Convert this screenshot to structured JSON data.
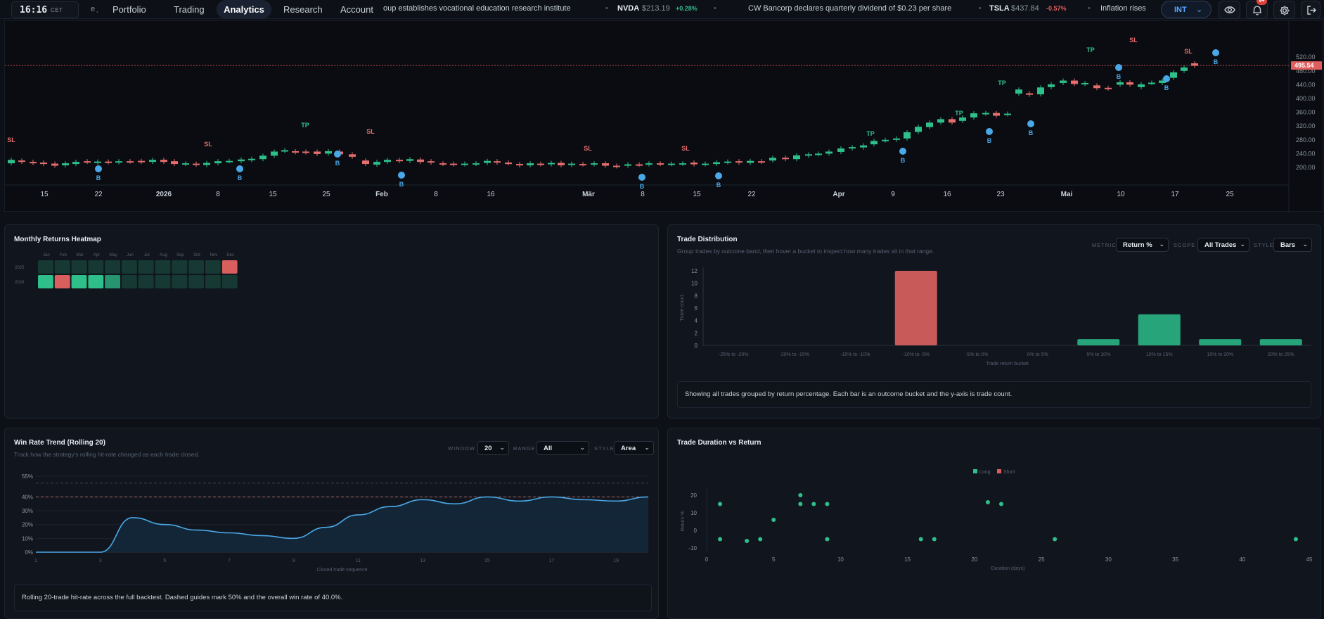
{
  "header": {
    "time": "16:16",
    "timezone": "CET",
    "lang_glyph": "eˏ",
    "nav": [
      {
        "label": "Portfolio",
        "active": false
      },
      {
        "label": "Trading",
        "active": false
      },
      {
        "label": "Analytics",
        "active": true
      },
      {
        "label": "Research",
        "active": false
      },
      {
        "label": "Account",
        "active": false
      }
    ],
    "ticker": {
      "news1": "oup establishes vocational education research institute",
      "sym1": "NVDA",
      "px1": "$213.19",
      "chg1": "+0.28%",
      "news2": "CW Bancorp declares quarterly dividend of $0.23 per share",
      "sym2": "TSLA",
      "px2": "$437.84",
      "chg2": "-0.57%",
      "news3": "Inflation rises"
    },
    "market_button": "INT",
    "notification_count": "9+",
    "icons": [
      "clock-icon",
      "chevron-down-icon",
      "eye-icon",
      "bell-icon",
      "gear-icon",
      "logout-icon"
    ]
  },
  "price_chart": {
    "current_price": "495.54",
    "y_ticks": [
      "520.00",
      "480.00",
      "440.00",
      "400.00",
      "360.00",
      "320.00",
      "280.00",
      "240.00",
      "200.00"
    ],
    "x_ticks": [
      "15",
      "22",
      "2026",
      "8",
      "15",
      "25",
      "Feb",
      "8",
      "16",
      "Mär",
      "8",
      "15",
      "22",
      "Apr",
      "9",
      "16",
      "23",
      "Mai",
      "10",
      "17",
      "25"
    ],
    "markers": {
      "tp": "TP",
      "sl": "SL",
      "buy": "B"
    },
    "colors": {
      "up": "#2fbf8a",
      "down": "#e86e6e",
      "buy": "#4aa8e8"
    }
  },
  "heatmap": {
    "title": "Monthly Returns Heatmap",
    "months": [
      "Jan",
      "Feb",
      "Mar",
      "Apr",
      "May",
      "Jun",
      "Jul",
      "Aug",
      "Sep",
      "Oct",
      "Nov",
      "Dec"
    ],
    "rows": [
      {
        "year": "2025",
        "cells": [
          "n",
          "n",
          "n",
          "n",
          "n",
          "n",
          "n",
          "n",
          "n",
          "n",
          "n",
          "r"
        ]
      },
      {
        "year": "2026",
        "cells": [
          "g",
          "r",
          "g",
          "g",
          "m",
          "n",
          "n",
          "n",
          "n",
          "n",
          "n",
          "n"
        ]
      }
    ],
    "colors": {
      "n": "#163a33",
      "g": "#2fbf8a",
      "m": "#26956f",
      "r": "#d95f5f"
    }
  },
  "distribution": {
    "title": "Trade Distribution",
    "subtitle": "Group trades by outcome band, then hover a bucket to inspect how many trades sit in that range.",
    "metric_label": "METRIC",
    "metric_value": "Return %",
    "scope_label": "SCOPE",
    "scope_value": "All Trades",
    "style_label": "STYLE",
    "style_value": "Bars",
    "note": "Showing all trades grouped by return percentage. Each bar is an outcome bucket and the y-axis is trade count.",
    "chart_data": {
      "type": "bar",
      "categories": [
        "-25% to -20%",
        "-20% to -15%",
        "-15% to -10%",
        "-10% to -5%",
        "-5% to 0%",
        "0% to 5%",
        "5% to 10%",
        "10% to 15%",
        "15% to 20%",
        "20% to 25%"
      ],
      "values": [
        0,
        0,
        0,
        12,
        0,
        0,
        1,
        5,
        1,
        1
      ],
      "xlabel": "Trade return bucket",
      "ylabel": "Trade count",
      "ylim": [
        0,
        12
      ],
      "y_ticks": [
        "0",
        "2",
        "4",
        "6",
        "8",
        "10",
        "12"
      ],
      "colors": {
        "loss": "#c85a5a",
        "gain": "#27a47a"
      }
    }
  },
  "winrate": {
    "title": "Win Rate Trend (Rolling 20)",
    "subtitle": "Track how the strategy's rolling hit-rate changed as each trade closed.",
    "window_label": "WINDOW",
    "window_value": "20",
    "range_label": "RANGE",
    "range_value": "All",
    "style_label": "STYLE",
    "style_value": "Area",
    "note": "Rolling 20-trade hit-rate across the full backtest. Dashed guides mark 50% and the overall win rate of 40.0%.",
    "chart_data": {
      "type": "area",
      "x": [
        1,
        3,
        4,
        5,
        6,
        7,
        8,
        9,
        10,
        11,
        12,
        13,
        14,
        15,
        16,
        17,
        18,
        19,
        20
      ],
      "y": [
        0,
        0,
        25,
        20,
        16,
        14,
        12,
        10,
        18,
        27,
        33,
        38,
        35,
        40,
        37,
        40,
        38,
        37,
        40
      ],
      "xlabel": "Closed trade sequence",
      "x_ticks": [
        "1",
        "3",
        "5",
        "7",
        "9",
        "11",
        "13",
        "15",
        "17",
        "19"
      ],
      "y_ticks": [
        "0%",
        "10%",
        "20%",
        "30%",
        "40%",
        "55%"
      ],
      "ylim": [
        0,
        55
      ],
      "guides": [
        50,
        40
      ],
      "color": "#4aa8e8"
    }
  },
  "duration": {
    "title": "Trade Duration vs Return",
    "legend_long": "Long",
    "legend_short": "Short",
    "chart_data": {
      "type": "scatter",
      "series": [
        {
          "name": "Long",
          "points": [
            [
              1,
              15
            ],
            [
              1,
              -5
            ],
            [
              3,
              -6
            ],
            [
              4,
              -5
            ],
            [
              5,
              6
            ],
            [
              7,
              20
            ],
            [
              7,
              15
            ],
            [
              8,
              15
            ],
            [
              9,
              15
            ],
            [
              9,
              -5
            ],
            [
              16,
              -5
            ],
            [
              17,
              -5
            ],
            [
              21,
              16
            ],
            [
              22,
              15
            ],
            [
              26,
              -5
            ],
            [
              44,
              -5
            ]
          ]
        }
      ],
      "xlabel": "Duration (days)",
      "ylabel": "Return %",
      "x_ticks": [
        "0",
        "5",
        "10",
        "15",
        "20",
        "25",
        "30",
        "35",
        "40",
        "45"
      ],
      "y_ticks": [
        "20",
        "10",
        "0",
        "-10"
      ],
      "xlim": [
        0,
        45
      ],
      "ylim": [
        -10,
        20
      ],
      "colors": {
        "long": "#2fbf8a",
        "short": "#d95f5f"
      }
    }
  }
}
